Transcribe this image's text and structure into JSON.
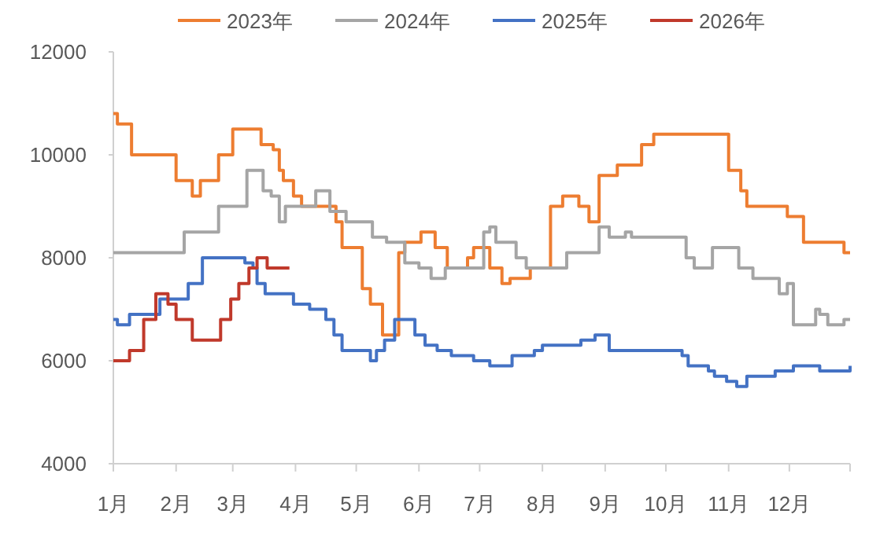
{
  "chart_data": {
    "type": "step",
    "legend": "top",
    "grid": false,
    "xlim": [
      "--01-01",
      "--12-31"
    ],
    "xticks": [
      {
        "value": "--01-01",
        "label": "1月"
      },
      {
        "value": "--02-01",
        "label": "2月"
      },
      {
        "value": "--03-01",
        "label": "3月"
      },
      {
        "value": "--04-01",
        "label": "4月"
      },
      {
        "value": "--05-01",
        "label": "5月"
      },
      {
        "value": "--06-01",
        "label": "6月"
      },
      {
        "value": "--07-01",
        "label": "7月"
      },
      {
        "value": "--08-01",
        "label": "8月"
      },
      {
        "value": "--09-01",
        "label": "9月"
      },
      {
        "value": "--10-01",
        "label": "10月"
      },
      {
        "value": "--11-01",
        "label": "11月"
      },
      {
        "value": "--12-01",
        "label": "12月"
      },
      {
        "value": "--12-31",
        "label": null
      }
    ],
    "ylim": [
      4000,
      12000
    ],
    "yticks": [
      4000,
      6000,
      8000,
      10000,
      12000
    ],
    "series": [
      {
        "name": "2023年",
        "color": "#ed7d31",
        "x": [
          "--01-01",
          "--01-03",
          "--01-10",
          "--02-01",
          "--02-09",
          "--02-13",
          "--02-22",
          "--03-01",
          "--03-15",
          "--03-21",
          "--03-24",
          "--03-26",
          "--03-31",
          "--04-04",
          "--04-21",
          "--04-24",
          "--05-04",
          "--05-08",
          "--05-14",
          "--05-22",
          "--05-25",
          "--06-02",
          "--06-09",
          "--06-15",
          "--06-25",
          "--06-28",
          "--07-06",
          "--07-12",
          "--07-16",
          "--07-26",
          "--08-05",
          "--08-11",
          "--08-19",
          "--08-24",
          "--08-29",
          "--09-07",
          "--09-19",
          "--09-25",
          "--11-01",
          "--11-07",
          "--11-10",
          "--11-30",
          "--12-08",
          "--12-28",
          "--12-31"
        ],
        "values": [
          10800,
          10600,
          10000,
          9500,
          9200,
          9500,
          10000,
          10500,
          10200,
          10100,
          9700,
          9500,
          9200,
          9000,
          8700,
          8200,
          7400,
          7100,
          6500,
          8100,
          8300,
          8500,
          8200,
          7800,
          8000,
          8200,
          7800,
          7500,
          7600,
          7800,
          9000,
          9200,
          9000,
          8700,
          9600,
          9800,
          10200,
          10400,
          9700,
          9300,
          9000,
          8800,
          8300,
          8100,
          8100
        ]
      },
      {
        "name": "2024年",
        "color": "#a5a5a5",
        "x": [
          "--01-01",
          "--02-05",
          "--02-22",
          "--03-08",
          "--03-16",
          "--03-20",
          "--03-24",
          "--03-27",
          "--04-11",
          "--04-18",
          "--04-26",
          "--05-09",
          "--05-16",
          "--05-25",
          "--06-01",
          "--06-07",
          "--06-14",
          "--07-03",
          "--07-06",
          "--07-09",
          "--07-19",
          "--07-24",
          "--08-13",
          "--08-29",
          "--09-03",
          "--09-11",
          "--09-14",
          "--10-11",
          "--10-15",
          "--10-24",
          "--11-06",
          "--11-13",
          "--11-26",
          "--11-30",
          "--12-03",
          "--12-14",
          "--12-16",
          "--12-20",
          "--12-28",
          "--12-31"
        ],
        "values": [
          8100,
          8500,
          9000,
          9700,
          9300,
          9200,
          8700,
          9000,
          9300,
          8900,
          8700,
          8400,
          8300,
          7900,
          7800,
          7600,
          7800,
          8500,
          8600,
          8300,
          8000,
          7800,
          8100,
          8600,
          8400,
          8500,
          8400,
          8000,
          7800,
          8200,
          7800,
          7600,
          7300,
          7500,
          6700,
          7000,
          6900,
          6700,
          6800,
          6800
        ]
      },
      {
        "name": "2025年",
        "color": "#4472c4",
        "x": [
          "--01-01",
          "--01-03",
          "--01-09",
          "--01-24",
          "--02-07",
          "--02-14",
          "--03-07",
          "--03-11",
          "--03-13",
          "--03-17",
          "--03-31",
          "--04-08",
          "--04-16",
          "--04-20",
          "--04-24",
          "--05-08",
          "--05-11",
          "--05-15",
          "--05-20",
          "--05-30",
          "--06-04",
          "--06-10",
          "--06-17",
          "--06-28",
          "--07-06",
          "--07-17",
          "--07-28",
          "--08-01",
          "--08-20",
          "--08-27",
          "--09-03",
          "--10-09",
          "--10-12",
          "--10-22",
          "--10-25",
          "--10-31",
          "--11-05",
          "--11-10",
          "--11-24",
          "--12-03",
          "--12-16",
          "--12-31"
        ],
        "values": [
          6800,
          6700,
          6900,
          7200,
          7500,
          8000,
          7900,
          7800,
          7500,
          7300,
          7100,
          7000,
          6800,
          6500,
          6200,
          6000,
          6200,
          6400,
          6800,
          6500,
          6300,
          6200,
          6100,
          6000,
          5900,
          6100,
          6200,
          6300,
          6400,
          6500,
          6200,
          6100,
          5900,
          5800,
          5700,
          5600,
          5500,
          5700,
          5800,
          5900,
          5800,
          5900
        ]
      },
      {
        "name": "2026年",
        "color": "#c0392b",
        "x": [
          "--01-01",
          "--01-09",
          "--01-16",
          "--01-22",
          "--01-28",
          "--02-01",
          "--02-09",
          "--02-23",
          "--02-28",
          "--03-04",
          "--03-09",
          "--03-13",
          "--03-18",
          "--03-29"
        ],
        "values": [
          6000,
          6200,
          6800,
          7300,
          7100,
          6800,
          6400,
          6800,
          7200,
          7500,
          7800,
          8000,
          7800,
          7800
        ]
      }
    ]
  }
}
